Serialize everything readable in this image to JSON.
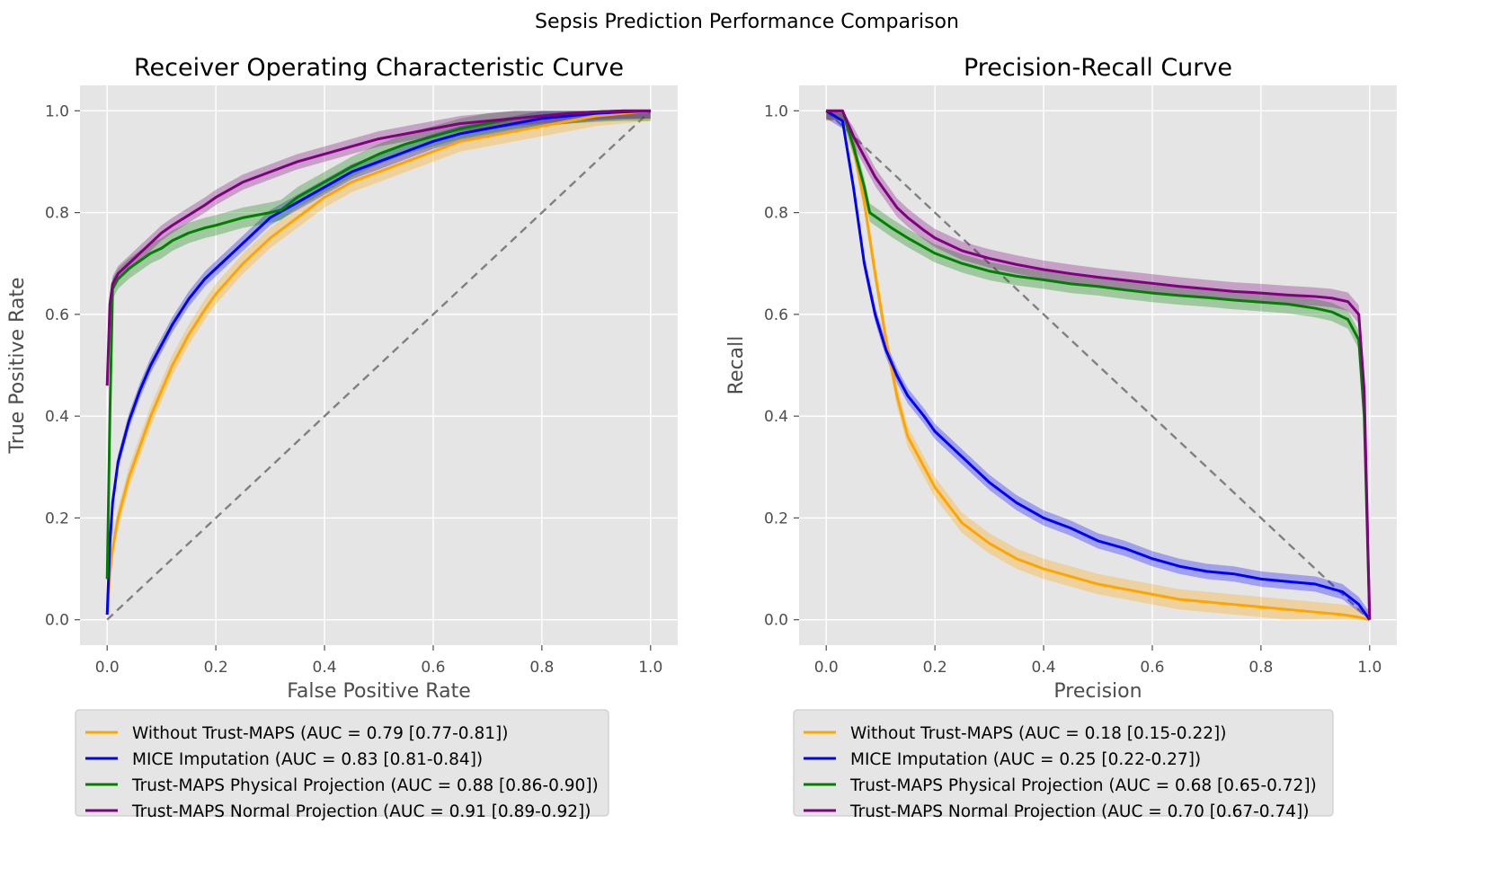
{
  "figure": {
    "suptitle": "Sepsis Prediction Performance Comparison"
  },
  "colors": {
    "panel_bg": "#e5e5e5",
    "grid": "#ffffff",
    "text": "#4d4d4d",
    "diagonal": "#808080",
    "orange": "#ffa500",
    "blue": "#0000ff",
    "green": "#008000",
    "purple": "#800080"
  },
  "chart_data": [
    {
      "type": "line",
      "title": "Receiver Operating Characteristic Curve",
      "xlabel": "False Positive Rate",
      "ylabel": "True Positive Rate",
      "xlim": [
        -0.05,
        1.05
      ],
      "ylim": [
        -0.05,
        1.05
      ],
      "xticks": [
        "0.0",
        "0.2",
        "0.4",
        "0.6",
        "0.8",
        "1.0"
      ],
      "yticks": [
        "0.0",
        "0.2",
        "0.4",
        "0.6",
        "0.8",
        "1.0"
      ],
      "grid": true,
      "legend_position": "below",
      "reference_line": {
        "x": [
          0,
          1
        ],
        "y": [
          0,
          1
        ],
        "style": "dashed"
      },
      "series": [
        {
          "name": "Without Trust-MAPS (AUC = 0.79 [0.77-0.81])",
          "color": "orange",
          "band": 0.02,
          "x": [
            0,
            0.005,
            0.01,
            0.02,
            0.04,
            0.06,
            0.08,
            0.1,
            0.12,
            0.15,
            0.18,
            0.2,
            0.25,
            0.3,
            0.35,
            0.4,
            0.45,
            0.5,
            0.55,
            0.6,
            0.65,
            0.7,
            0.75,
            0.8,
            0.85,
            0.9,
            0.95,
            1.0
          ],
          "y": [
            0.01,
            0.09,
            0.14,
            0.2,
            0.28,
            0.34,
            0.4,
            0.45,
            0.5,
            0.56,
            0.61,
            0.64,
            0.7,
            0.75,
            0.79,
            0.83,
            0.86,
            0.88,
            0.9,
            0.92,
            0.94,
            0.95,
            0.96,
            0.97,
            0.98,
            0.99,
            0.995,
            1.0
          ]
        },
        {
          "name": "MICE Imputation (AUC = 0.83 [0.81-0.84])",
          "color": "blue",
          "band": 0.015,
          "x": [
            0,
            0.005,
            0.01,
            0.02,
            0.04,
            0.06,
            0.08,
            0.1,
            0.12,
            0.15,
            0.18,
            0.2,
            0.25,
            0.3,
            0.35,
            0.4,
            0.45,
            0.5,
            0.55,
            0.6,
            0.65,
            0.7,
            0.75,
            0.8,
            0.85,
            0.9,
            0.95,
            1.0
          ],
          "y": [
            0.01,
            0.15,
            0.23,
            0.31,
            0.39,
            0.45,
            0.5,
            0.54,
            0.58,
            0.63,
            0.67,
            0.69,
            0.74,
            0.79,
            0.82,
            0.85,
            0.88,
            0.9,
            0.92,
            0.94,
            0.955,
            0.965,
            0.975,
            0.985,
            0.99,
            0.995,
            0.998,
            1.0
          ]
        },
        {
          "name": "Trust-MAPS Physical Projection (AUC = 0.88 [0.86-0.90])",
          "color": "green",
          "band": 0.02,
          "x": [
            0,
            0.005,
            0.01,
            0.02,
            0.04,
            0.06,
            0.08,
            0.1,
            0.12,
            0.15,
            0.18,
            0.2,
            0.25,
            0.3,
            0.32,
            0.35,
            0.4,
            0.45,
            0.5,
            0.55,
            0.6,
            0.65,
            0.7,
            0.75,
            0.8,
            0.85,
            0.9,
            0.95,
            1.0
          ],
          "y": [
            0.08,
            0.4,
            0.65,
            0.67,
            0.69,
            0.705,
            0.72,
            0.73,
            0.745,
            0.76,
            0.77,
            0.775,
            0.79,
            0.8,
            0.805,
            0.83,
            0.86,
            0.89,
            0.915,
            0.935,
            0.95,
            0.965,
            0.975,
            0.985,
            0.99,
            0.995,
            0.998,
            1.0,
            1.0
          ]
        },
        {
          "name": "Trust-MAPS Normal Projection (AUC = 0.91 [0.89-0.92])",
          "color": "purple",
          "band": 0.015,
          "x": [
            0,
            0.005,
            0.01,
            0.02,
            0.04,
            0.06,
            0.08,
            0.1,
            0.12,
            0.15,
            0.18,
            0.2,
            0.25,
            0.3,
            0.35,
            0.4,
            0.45,
            0.5,
            0.55,
            0.6,
            0.65,
            0.7,
            0.75,
            0.8,
            0.85,
            0.9,
            0.95,
            1.0
          ],
          "y": [
            0.46,
            0.62,
            0.66,
            0.68,
            0.7,
            0.72,
            0.74,
            0.76,
            0.775,
            0.795,
            0.815,
            0.83,
            0.86,
            0.88,
            0.9,
            0.915,
            0.93,
            0.945,
            0.955,
            0.965,
            0.975,
            0.98,
            0.985,
            0.99,
            0.995,
            0.998,
            1.0,
            1.0
          ]
        }
      ]
    },
    {
      "type": "line",
      "title": "Precision-Recall Curve",
      "xlabel": "Precision",
      "ylabel": "Recall",
      "xlim": [
        -0.05,
        1.05
      ],
      "ylim": [
        -0.05,
        1.05
      ],
      "xticks": [
        "0.0",
        "0.2",
        "0.4",
        "0.6",
        "0.8",
        "1.0"
      ],
      "yticks": [
        "0.0",
        "0.2",
        "0.4",
        "0.6",
        "0.8",
        "1.0"
      ],
      "grid": true,
      "legend_position": "below",
      "reference_line": {
        "x": [
          0,
          1
        ],
        "y": [
          1,
          0
        ],
        "style": "dashed"
      },
      "series": [
        {
          "name": "Without Trust-MAPS (AUC = 0.18 [0.15-0.22])",
          "color": "orange",
          "band": 0.02,
          "x": [
            0,
            0.03,
            0.05,
            0.07,
            0.09,
            0.11,
            0.13,
            0.15,
            0.18,
            0.2,
            0.25,
            0.3,
            0.35,
            0.4,
            0.45,
            0.5,
            0.55,
            0.6,
            0.65,
            0.7,
            0.75,
            0.8,
            0.85,
            0.9,
            0.95,
            0.98,
            1.0
          ],
          "y": [
            1.0,
            1.0,
            0.93,
            0.82,
            0.68,
            0.55,
            0.44,
            0.36,
            0.3,
            0.26,
            0.19,
            0.15,
            0.12,
            0.1,
            0.085,
            0.07,
            0.06,
            0.05,
            0.04,
            0.035,
            0.03,
            0.025,
            0.02,
            0.015,
            0.01,
            0.005,
            0.0
          ]
        },
        {
          "name": "MICE Imputation (AUC = 0.25 [0.22-0.27])",
          "color": "blue",
          "band": 0.015,
          "x": [
            0,
            0.03,
            0.05,
            0.07,
            0.09,
            0.11,
            0.13,
            0.15,
            0.18,
            0.2,
            0.25,
            0.3,
            0.35,
            0.4,
            0.45,
            0.5,
            0.55,
            0.6,
            0.65,
            0.7,
            0.75,
            0.8,
            0.85,
            0.9,
            0.95,
            0.98,
            1.0
          ],
          "y": [
            1.0,
            0.98,
            0.85,
            0.7,
            0.6,
            0.53,
            0.48,
            0.44,
            0.4,
            0.37,
            0.32,
            0.27,
            0.23,
            0.2,
            0.18,
            0.155,
            0.14,
            0.12,
            0.105,
            0.095,
            0.09,
            0.08,
            0.075,
            0.07,
            0.055,
            0.03,
            0.0
          ]
        },
        {
          "name": "Trust-MAPS Physical Projection (AUC = 0.68 [0.65-0.72])",
          "color": "green",
          "band": 0.018,
          "x": [
            0,
            0.03,
            0.05,
            0.07,
            0.08,
            0.1,
            0.12,
            0.15,
            0.2,
            0.25,
            0.3,
            0.35,
            0.4,
            0.45,
            0.5,
            0.55,
            0.6,
            0.65,
            0.7,
            0.75,
            0.8,
            0.85,
            0.9,
            0.93,
            0.96,
            0.98,
            0.99,
            1.0
          ],
          "y": [
            1.0,
            1.0,
            0.93,
            0.85,
            0.8,
            0.785,
            0.77,
            0.75,
            0.72,
            0.7,
            0.685,
            0.675,
            0.668,
            0.66,
            0.655,
            0.648,
            0.642,
            0.637,
            0.633,
            0.628,
            0.624,
            0.62,
            0.612,
            0.605,
            0.59,
            0.55,
            0.4,
            0.0
          ]
        },
        {
          "name": "Trust-MAPS Normal Projection (AUC = 0.70 [0.67-0.74])",
          "color": "purple",
          "band": 0.018,
          "x": [
            0,
            0.03,
            0.05,
            0.07,
            0.09,
            0.11,
            0.13,
            0.15,
            0.18,
            0.2,
            0.25,
            0.3,
            0.35,
            0.4,
            0.45,
            0.5,
            0.55,
            0.6,
            0.65,
            0.7,
            0.75,
            0.8,
            0.85,
            0.9,
            0.93,
            0.96,
            0.98,
            0.99,
            1.0
          ],
          "y": [
            1.0,
            1.0,
            0.95,
            0.91,
            0.87,
            0.84,
            0.81,
            0.79,
            0.765,
            0.75,
            0.725,
            0.71,
            0.698,
            0.688,
            0.68,
            0.673,
            0.667,
            0.661,
            0.655,
            0.65,
            0.645,
            0.642,
            0.638,
            0.635,
            0.632,
            0.625,
            0.6,
            0.45,
            0.0
          ]
        }
      ]
    }
  ]
}
